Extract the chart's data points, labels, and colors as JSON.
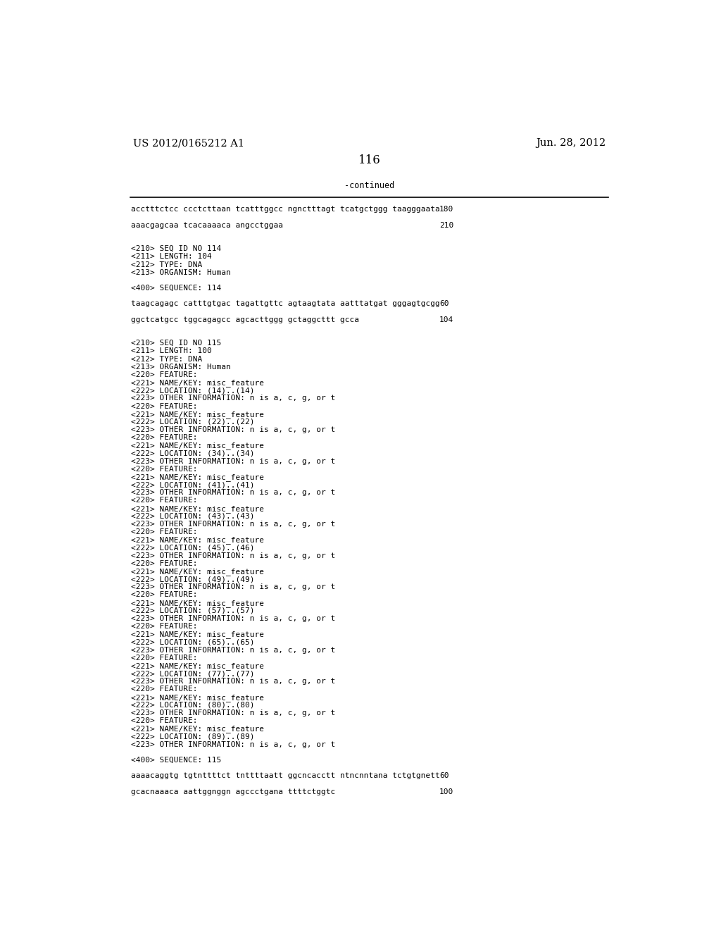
{
  "bg_color": "#ffffff",
  "header_left": "US 2012/0165212 A1",
  "header_right": "Jun. 28, 2012",
  "page_number": "116",
  "continued_label": "-continued",
  "text_color": "#000000",
  "header_font_size": 10.5,
  "page_num_font_size": 12,
  "mono_font_size": 8.0,
  "content_lines": [
    {
      "text": "acctttctcc ccctcttaan tcatttggcc ngnctttagt tcatgctggg taagggaata",
      "number": "180"
    },
    {
      "text": ""
    },
    {
      "text": "aaacgagcaa tcacaaaaca angcctggaa",
      "number": "210"
    },
    {
      "text": ""
    },
    {
      "text": ""
    },
    {
      "text": "<210> SEQ ID NO 114"
    },
    {
      "text": "<211> LENGTH: 104"
    },
    {
      "text": "<212> TYPE: DNA"
    },
    {
      "text": "<213> ORGANISM: Human"
    },
    {
      "text": ""
    },
    {
      "text": "<400> SEQUENCE: 114"
    },
    {
      "text": ""
    },
    {
      "text": "taagcagagc catttgtgac tagattgttc agtaagtata aatttatgat gggagtgcgg",
      "number": "60"
    },
    {
      "text": ""
    },
    {
      "text": "ggctcatgcc tggcagagcc agcacttggg gctaggcttt gcca",
      "number": "104"
    },
    {
      "text": ""
    },
    {
      "text": ""
    },
    {
      "text": "<210> SEQ ID NO 115"
    },
    {
      "text": "<211> LENGTH: 100"
    },
    {
      "text": "<212> TYPE: DNA"
    },
    {
      "text": "<213> ORGANISM: Human"
    },
    {
      "text": "<220> FEATURE:"
    },
    {
      "text": "<221> NAME/KEY: misc_feature"
    },
    {
      "text": "<222> LOCATION: (14)..(14)"
    },
    {
      "text": "<223> OTHER INFORMATION: n is a, c, g, or t"
    },
    {
      "text": "<220> FEATURE:"
    },
    {
      "text": "<221> NAME/KEY: misc_feature"
    },
    {
      "text": "<222> LOCATION: (22)..(22)"
    },
    {
      "text": "<223> OTHER INFORMATION: n is a, c, g, or t"
    },
    {
      "text": "<220> FEATURE:"
    },
    {
      "text": "<221> NAME/KEY: misc_feature"
    },
    {
      "text": "<222> LOCATION: (34)..(34)"
    },
    {
      "text": "<223> OTHER INFORMATION: n is a, c, g, or t"
    },
    {
      "text": "<220> FEATURE:"
    },
    {
      "text": "<221> NAME/KEY: misc_feature"
    },
    {
      "text": "<222> LOCATION: (41)..(41)"
    },
    {
      "text": "<223> OTHER INFORMATION: n is a, c, g, or t"
    },
    {
      "text": "<220> FEATURE:"
    },
    {
      "text": "<221> NAME/KEY: misc_feature"
    },
    {
      "text": "<222> LOCATION: (43)..(43)"
    },
    {
      "text": "<223> OTHER INFORMATION: n is a, c, g, or t"
    },
    {
      "text": "<220> FEATURE:"
    },
    {
      "text": "<221> NAME/KEY: misc_feature"
    },
    {
      "text": "<222> LOCATION: (45)..(46)"
    },
    {
      "text": "<223> OTHER INFORMATION: n is a, c, g, or t"
    },
    {
      "text": "<220> FEATURE:"
    },
    {
      "text": "<221> NAME/KEY: misc_feature"
    },
    {
      "text": "<222> LOCATION: (49)..(49)"
    },
    {
      "text": "<223> OTHER INFORMATION: n is a, c, g, or t"
    },
    {
      "text": "<220> FEATURE:"
    },
    {
      "text": "<221> NAME/KEY: misc_feature"
    },
    {
      "text": "<222> LOCATION: (57)..(57)"
    },
    {
      "text": "<223> OTHER INFORMATION: n is a, c, g, or t"
    },
    {
      "text": "<220> FEATURE:"
    },
    {
      "text": "<221> NAME/KEY: misc_feature"
    },
    {
      "text": "<222> LOCATION: (65)..(65)"
    },
    {
      "text": "<223> OTHER INFORMATION: n is a, c, g, or t"
    },
    {
      "text": "<220> FEATURE:"
    },
    {
      "text": "<221> NAME/KEY: misc_feature"
    },
    {
      "text": "<222> LOCATION: (77)..(77)"
    },
    {
      "text": "<223> OTHER INFORMATION: n is a, c, g, or t"
    },
    {
      "text": "<220> FEATURE:"
    },
    {
      "text": "<221> NAME/KEY: misc_feature"
    },
    {
      "text": "<222> LOCATION: (80)..(80)"
    },
    {
      "text": "<223> OTHER INFORMATION: n is a, c, g, or t"
    },
    {
      "text": "<220> FEATURE:"
    },
    {
      "text": "<221> NAME/KEY: misc_feature"
    },
    {
      "text": "<222> LOCATION: (89)..(89)"
    },
    {
      "text": "<223> OTHER INFORMATION: n is a, c, g, or t"
    },
    {
      "text": ""
    },
    {
      "text": "<400> SEQUENCE: 115"
    },
    {
      "text": ""
    },
    {
      "text": "aaaacaggtg tgtnttttct tnttttaatt ggcncacctt ntncnntana tctgtgnett",
      "number": "60"
    },
    {
      "text": ""
    },
    {
      "text": "gcacnaaaca aattggnggn agccctgana ttttctggtc",
      "number": "100"
    }
  ]
}
